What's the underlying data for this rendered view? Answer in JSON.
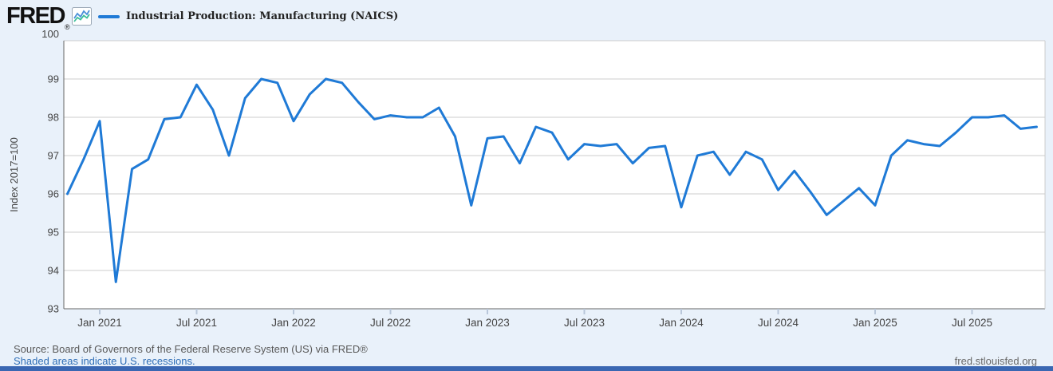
{
  "header": {
    "logo": "FRED",
    "registered": "®",
    "legend_label": "Industrial Production: Manufacturing (NAICS)"
  },
  "y_axis": {
    "label": "Index 2017=100",
    "ticks": [
      100,
      99,
      98,
      97,
      96,
      95,
      94,
      93
    ]
  },
  "x_axis": {
    "tick_labels": [
      "Jan 2021",
      "Jul 2021",
      "Jan 2022",
      "Jul 2022",
      "Jan 2023",
      "Jul 2023",
      "Jan 2024",
      "Jul 2024",
      "Jan 2025",
      "Jul 2025"
    ]
  },
  "footer": {
    "source": "Source: Board of Governors of the Federal Reserve System (US) via FRED®",
    "recession_note": "Shaded areas indicate U.S. recessions.",
    "site": "fred.stlouisfed.org"
  },
  "colors": {
    "line": "#1f7ad6",
    "page_bg": "#e9f1fa",
    "plot_bg": "#ffffff",
    "grid": "#cccccc",
    "axis": "#666666",
    "frame_light": "#cccccc",
    "tick": "#b9c7da",
    "axis_text": "#444444",
    "bottom_bar": "#3a67b2",
    "link": "#2f6eb6",
    "icon_blue": "#4a90d9",
    "icon_teal": "#3dbf9b"
  },
  "chart_data": {
    "type": "line",
    "title": "Industrial Production: Manufacturing (NAICS)",
    "ylabel": "Index 2017=100",
    "ylim": [
      93,
      100
    ],
    "grid": "horizontal-only",
    "legend_position": "top-left",
    "frequency": "monthly",
    "x": [
      "2020-11",
      "2020-12",
      "2021-01",
      "2021-02",
      "2021-03",
      "2021-04",
      "2021-05",
      "2021-06",
      "2021-07",
      "2021-08",
      "2021-09",
      "2021-10",
      "2021-11",
      "2021-12",
      "2022-01",
      "2022-02",
      "2022-03",
      "2022-04",
      "2022-05",
      "2022-06",
      "2022-07",
      "2022-08",
      "2022-09",
      "2022-10",
      "2022-11",
      "2022-12",
      "2023-01",
      "2023-02",
      "2023-03",
      "2023-04",
      "2023-05",
      "2023-06",
      "2023-07",
      "2023-08",
      "2023-09",
      "2023-10",
      "2023-11",
      "2023-12",
      "2024-01",
      "2024-02",
      "2024-03",
      "2024-04",
      "2024-05",
      "2024-06",
      "2024-07",
      "2024-08",
      "2024-09",
      "2024-10",
      "2024-11",
      "2024-12",
      "2025-01",
      "2025-02",
      "2025-03",
      "2025-04",
      "2025-05",
      "2025-06",
      "2025-07",
      "2025-08",
      "2025-09",
      "2025-10",
      "2025-11"
    ],
    "values": [
      96.0,
      96.9,
      97.9,
      93.7,
      96.65,
      96.9,
      97.95,
      98.0,
      98.85,
      98.2,
      97.0,
      98.5,
      99.0,
      98.9,
      97.9,
      98.6,
      99.0,
      98.9,
      98.4,
      97.95,
      98.05,
      98.0,
      98.0,
      98.25,
      97.5,
      95.7,
      97.45,
      97.5,
      96.8,
      97.75,
      97.6,
      96.9,
      97.3,
      97.25,
      97.3,
      96.8,
      97.2,
      97.25,
      95.65,
      97.0,
      97.1,
      96.5,
      97.1,
      96.9,
      96.1,
      96.6,
      96.05,
      95.45,
      95.8,
      96.15,
      95.7,
      97.0,
      97.4,
      97.3,
      97.25,
      97.6,
      98.0,
      98.0,
      98.05,
      97.7,
      97.75
    ]
  }
}
